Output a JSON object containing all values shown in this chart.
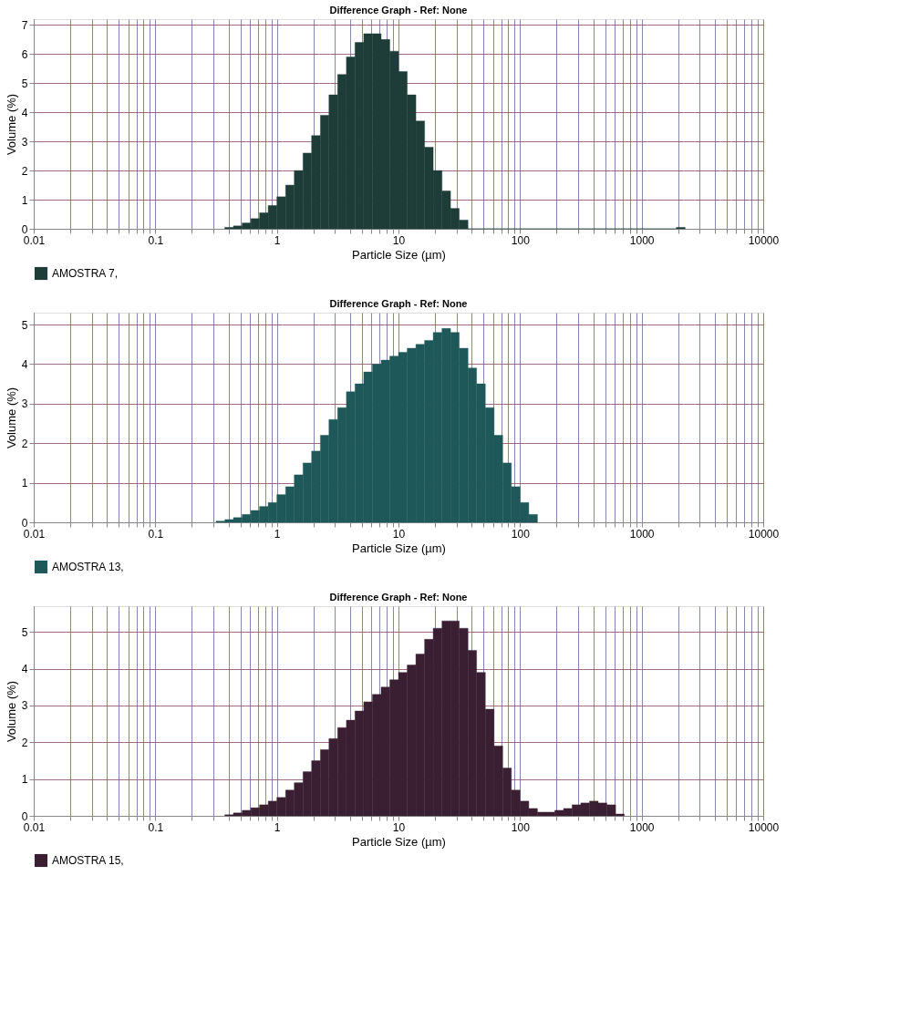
{
  "chart_data": [
    {
      "type": "histogram",
      "title": "Difference Graph - Ref: None",
      "xlabel": "Particle Size (µm)",
      "ylabel": "Volume (%)",
      "log": "x",
      "grid": true,
      "legend": "bottom",
      "xlim": [
        0.01,
        10000
      ],
      "xticks": [
        0.01,
        {
          "value": 0.02,
          "label": null
        },
        {
          "value": 0.03,
          "label": null
        },
        {
          "value": 0.04,
          "label": null
        },
        {
          "value": 0.05,
          "label": null
        },
        {
          "value": 0.06,
          "label": null
        },
        {
          "value": 0.07,
          "label": null
        },
        {
          "value": 0.08,
          "label": null
        },
        {
          "value": 0.09,
          "label": null
        },
        0.1,
        {
          "value": 0.2,
          "label": null
        },
        {
          "value": 0.3,
          "label": null
        },
        {
          "value": 0.4,
          "label": null
        },
        {
          "value": 0.5,
          "label": null
        },
        {
          "value": 0.6,
          "label": null
        },
        {
          "value": 0.7,
          "label": null
        },
        {
          "value": 0.8,
          "label": null
        },
        {
          "value": 0.9,
          "label": null
        },
        1,
        {
          "value": 2,
          "label": null
        },
        {
          "value": 3,
          "label": null
        },
        {
          "value": 4,
          "label": null
        },
        {
          "value": 5,
          "label": null
        },
        {
          "value": 6,
          "label": null
        },
        {
          "value": 7,
          "label": null
        },
        {
          "value": 8,
          "label": null
        },
        {
          "value": 9,
          "label": null
        },
        10,
        {
          "value": 20,
          "label": null
        },
        {
          "value": 30,
          "label": null
        },
        {
          "value": 40,
          "label": null
        },
        {
          "value": 50,
          "label": null
        },
        {
          "value": 60,
          "label": null
        },
        {
          "value": 70,
          "label": null
        },
        {
          "value": 80,
          "label": null
        },
        {
          "value": 90,
          "label": null
        },
        100,
        {
          "value": 200,
          "label": null
        },
        {
          "value": 300,
          "label": null
        },
        {
          "value": 400,
          "label": null
        },
        {
          "value": 500,
          "label": null
        },
        {
          "value": 600,
          "label": null
        },
        {
          "value": 700,
          "label": null
        },
        {
          "value": 800,
          "label": null
        },
        {
          "value": 900,
          "label": null
        },
        1000,
        {
          "value": 2000,
          "label": null
        },
        {
          "value": 3000,
          "label": null
        },
        {
          "value": 4000,
          "label": null
        },
        {
          "value": 5000,
          "label": null
        },
        {
          "value": 6000,
          "label": null
        },
        {
          "value": 7000,
          "label": null
        },
        {
          "value": 8000,
          "label": null
        },
        {
          "value": 9000,
          "label": null
        },
        10000
      ],
      "ylim": [
        0,
        7.2
      ],
      "yticks": [
        0,
        1,
        2,
        3,
        4,
        5,
        6,
        7
      ],
      "bins": [
        0.373,
        0.439,
        0.518,
        0.611,
        0.72,
        0.848,
        1,
        1.18,
        1.39,
        1.64,
        1.93,
        2.28,
        2.68,
        3.16,
        3.73,
        4.39,
        5.18,
        6.11,
        7.2,
        8.48,
        10,
        11.8,
        13.9,
        16.4,
        19.3,
        22.8,
        26.8,
        31.6,
        37.3,
        43.9,
        51.8,
        61.1,
        72,
        84.8,
        100,
        118,
        139,
        164,
        193,
        228,
        268,
        316,
        373,
        439,
        518,
        611,
        720,
        848,
        1000,
        1180,
        1390,
        1640,
        1930,
        2280
      ],
      "series": [
        {
          "name": "AMOSTRA 7,",
          "color": "#1f3d38",
          "values": [
            0.05,
            0.1,
            0.2,
            0.35,
            0.55,
            0.8,
            1.1,
            1.5,
            2.0,
            2.6,
            3.2,
            3.9,
            4.6,
            5.3,
            5.9,
            6.4,
            6.7,
            6.7,
            6.5,
            6.1,
            5.4,
            4.6,
            3.7,
            2.8,
            2.0,
            1.3,
            0.7,
            0.3,
            0,
            0,
            0,
            0,
            0,
            0,
            0,
            0,
            0,
            0,
            0,
            0,
            0,
            0,
            0,
            0,
            0,
            0,
            0,
            0,
            0,
            0,
            0,
            0,
            0.05
          ]
        }
      ]
    },
    {
      "type": "histogram",
      "title": "Difference Graph - Ref: None",
      "xlabel": "Particle Size (µm)",
      "ylabel": "Volume (%)",
      "log": "x",
      "grid": true,
      "legend": "bottom",
      "xlim": [
        0.01,
        10000
      ],
      "xticks": [
        0.01,
        {
          "value": 0.02,
          "label": null
        },
        {
          "value": 0.03,
          "label": null
        },
        {
          "value": 0.04,
          "label": null
        },
        {
          "value": 0.05,
          "label": null
        },
        {
          "value": 0.06,
          "label": null
        },
        {
          "value": 0.07,
          "label": null
        },
        {
          "value": 0.08,
          "label": null
        },
        {
          "value": 0.09,
          "label": null
        },
        0.1,
        {
          "value": 0.2,
          "label": null
        },
        {
          "value": 0.3,
          "label": null
        },
        {
          "value": 0.4,
          "label": null
        },
        {
          "value": 0.5,
          "label": null
        },
        {
          "value": 0.6,
          "label": null
        },
        {
          "value": 0.7,
          "label": null
        },
        {
          "value": 0.8,
          "label": null
        },
        {
          "value": 0.9,
          "label": null
        },
        1,
        {
          "value": 2,
          "label": null
        },
        {
          "value": 3,
          "label": null
        },
        {
          "value": 4,
          "label": null
        },
        {
          "value": 5,
          "label": null
        },
        {
          "value": 6,
          "label": null
        },
        {
          "value": 7,
          "label": null
        },
        {
          "value": 8,
          "label": null
        },
        {
          "value": 9,
          "label": null
        },
        10,
        {
          "value": 20,
          "label": null
        },
        {
          "value": 30,
          "label": null
        },
        {
          "value": 40,
          "label": null
        },
        {
          "value": 50,
          "label": null
        },
        {
          "value": 60,
          "label": null
        },
        {
          "value": 70,
          "label": null
        },
        {
          "value": 80,
          "label": null
        },
        {
          "value": 90,
          "label": null
        },
        100,
        {
          "value": 200,
          "label": null
        },
        {
          "value": 300,
          "label": null
        },
        {
          "value": 400,
          "label": null
        },
        {
          "value": 500,
          "label": null
        },
        {
          "value": 600,
          "label": null
        },
        {
          "value": 700,
          "label": null
        },
        {
          "value": 800,
          "label": null
        },
        {
          "value": 900,
          "label": null
        },
        1000,
        {
          "value": 2000,
          "label": null
        },
        {
          "value": 3000,
          "label": null
        },
        {
          "value": 4000,
          "label": null
        },
        {
          "value": 5000,
          "label": null
        },
        {
          "value": 6000,
          "label": null
        },
        {
          "value": 7000,
          "label": null
        },
        {
          "value": 8000,
          "label": null
        },
        {
          "value": 9000,
          "label": null
        },
        10000
      ],
      "ylim": [
        0,
        5.3
      ],
      "yticks": [
        0,
        1,
        2,
        3,
        4,
        5
      ],
      "bins": [
        0.316,
        0.373,
        0.439,
        0.518,
        0.611,
        0.72,
        0.848,
        1,
        1.18,
        1.39,
        1.64,
        1.93,
        2.28,
        2.68,
        3.16,
        3.73,
        4.39,
        5.18,
        6.11,
        7.2,
        8.48,
        10,
        11.8,
        13.9,
        16.4,
        19.3,
        22.8,
        26.8,
        31.6,
        37.3,
        43.9,
        51.8,
        61.1,
        72,
        84.8,
        100,
        118,
        139
      ],
      "series": [
        {
          "name": "AMOSTRA 13,",
          "color": "#1f5858",
          "values": [
            0.03,
            0.07,
            0.12,
            0.2,
            0.3,
            0.4,
            0.5,
            0.7,
            0.9,
            1.2,
            1.5,
            1.8,
            2.2,
            2.6,
            2.9,
            3.3,
            3.5,
            3.8,
            4.0,
            4.1,
            4.2,
            4.3,
            4.4,
            4.5,
            4.6,
            4.8,
            4.9,
            4.8,
            4.4,
            3.9,
            3.5,
            2.9,
            2.2,
            1.5,
            0.9,
            0.5,
            0.2
          ]
        }
      ]
    },
    {
      "type": "histogram",
      "title": "Difference Graph - Ref: None",
      "xlabel": "Particle Size (µm)",
      "ylabel": "Volume (%)",
      "log": "x",
      "grid": true,
      "legend": "bottom",
      "xlim": [
        0.01,
        10000
      ],
      "xticks": [
        0.01,
        {
          "value": 0.02,
          "label": null
        },
        {
          "value": 0.03,
          "label": null
        },
        {
          "value": 0.04,
          "label": null
        },
        {
          "value": 0.05,
          "label": null
        },
        {
          "value": 0.06,
          "label": null
        },
        {
          "value": 0.07,
          "label": null
        },
        {
          "value": 0.08,
          "label": null
        },
        {
          "value": 0.09,
          "label": null
        },
        0.1,
        {
          "value": 0.2,
          "label": null
        },
        {
          "value": 0.3,
          "label": null
        },
        {
          "value": 0.4,
          "label": null
        },
        {
          "value": 0.5,
          "label": null
        },
        {
          "value": 0.6,
          "label": null
        },
        {
          "value": 0.7,
          "label": null
        },
        {
          "value": 0.8,
          "label": null
        },
        {
          "value": 0.9,
          "label": null
        },
        1,
        {
          "value": 2,
          "label": null
        },
        {
          "value": 3,
          "label": null
        },
        {
          "value": 4,
          "label": null
        },
        {
          "value": 5,
          "label": null
        },
        {
          "value": 6,
          "label": null
        },
        {
          "value": 7,
          "label": null
        },
        {
          "value": 8,
          "label": null
        },
        {
          "value": 9,
          "label": null
        },
        10,
        {
          "value": 20,
          "label": null
        },
        {
          "value": 30,
          "label": null
        },
        {
          "value": 40,
          "label": null
        },
        {
          "value": 50,
          "label": null
        },
        {
          "value": 60,
          "label": null
        },
        {
          "value": 70,
          "label": null
        },
        {
          "value": 80,
          "label": null
        },
        {
          "value": 90,
          "label": null
        },
        100,
        {
          "value": 200,
          "label": null
        },
        {
          "value": 300,
          "label": null
        },
        {
          "value": 400,
          "label": null
        },
        {
          "value": 500,
          "label": null
        },
        {
          "value": 600,
          "label": null
        },
        {
          "value": 700,
          "label": null
        },
        {
          "value": 800,
          "label": null
        },
        {
          "value": 900,
          "label": null
        },
        1000,
        {
          "value": 2000,
          "label": null
        },
        {
          "value": 3000,
          "label": null
        },
        {
          "value": 4000,
          "label": null
        },
        {
          "value": 5000,
          "label": null
        },
        {
          "value": 6000,
          "label": null
        },
        {
          "value": 7000,
          "label": null
        },
        {
          "value": 8000,
          "label": null
        },
        {
          "value": 9000,
          "label": null
        },
        10000
      ],
      "ylim": [
        0,
        5.7
      ],
      "yticks": [
        0,
        1,
        2,
        3,
        4,
        5
      ],
      "bins": [
        0.373,
        0.439,
        0.518,
        0.611,
        0.72,
        0.848,
        1,
        1.18,
        1.39,
        1.64,
        1.93,
        2.28,
        2.68,
        3.16,
        3.73,
        4.39,
        5.18,
        6.11,
        7.2,
        8.48,
        10,
        11.8,
        13.9,
        16.4,
        19.3,
        22.8,
        26.8,
        31.6,
        37.3,
        43.9,
        51.8,
        61.1,
        72,
        84.8,
        100,
        118,
        139,
        164,
        193,
        228,
        268,
        316,
        373,
        439,
        518,
        611,
        720
      ],
      "series": [
        {
          "name": "AMOSTRA 15,",
          "color": "#3a1f33",
          "values": [
            0.03,
            0.08,
            0.15,
            0.22,
            0.3,
            0.4,
            0.5,
            0.7,
            0.9,
            1.2,
            1.5,
            1.8,
            2.1,
            2.4,
            2.6,
            2.85,
            3.1,
            3.3,
            3.5,
            3.7,
            3.9,
            4.1,
            4.4,
            4.8,
            5.1,
            5.3,
            5.3,
            5.1,
            4.5,
            3.9,
            2.9,
            1.9,
            1.3,
            0.7,
            0.4,
            0.2,
            0.1,
            0.1,
            0.15,
            0.2,
            0.3,
            0.35,
            0.4,
            0.35,
            0.3,
            0.05
          ]
        }
      ]
    }
  ]
}
